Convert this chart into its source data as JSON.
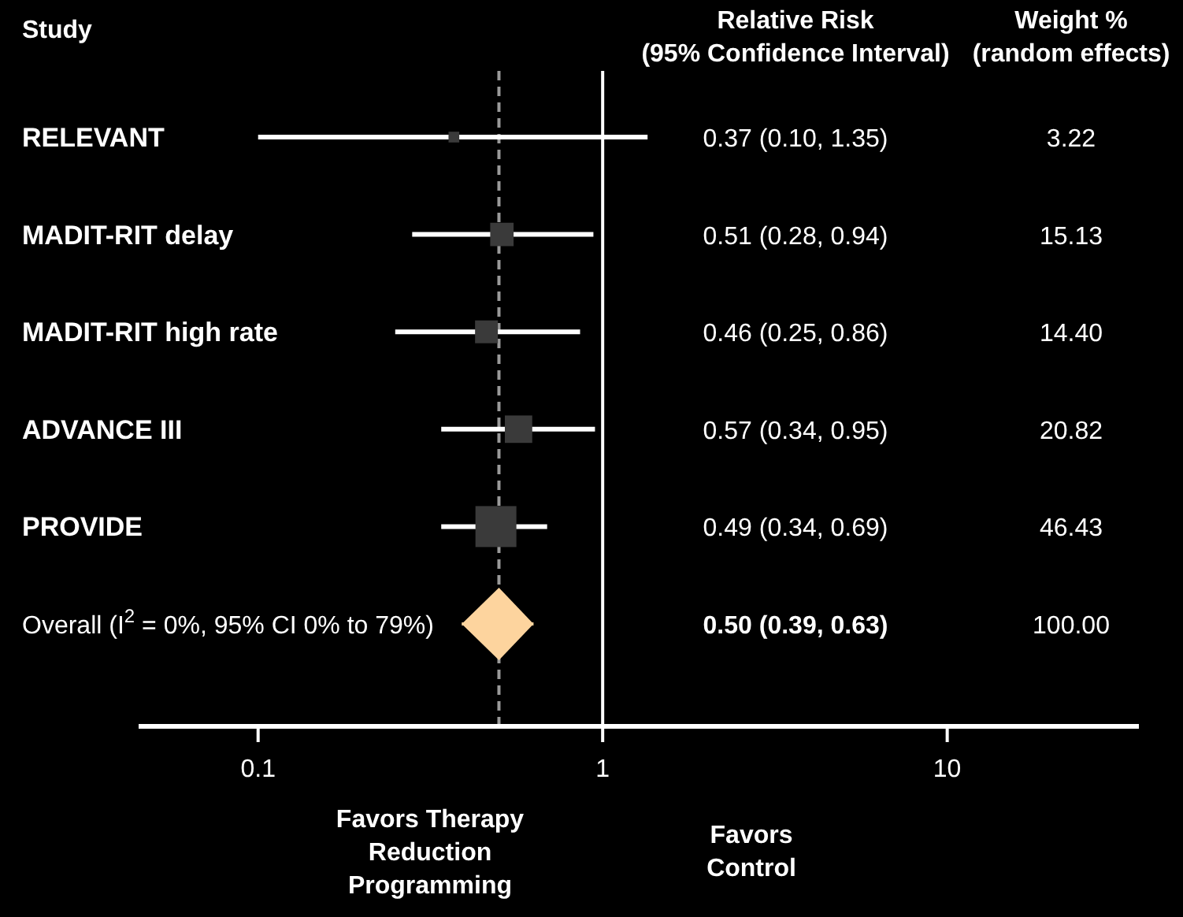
{
  "chart_data": [
    {
      "type": "bubble",
      "orientation": "horizontal",
      "ylabel": "Study",
      "categories": [
        "RELEVANT",
        "MADIT-RIT delay",
        "MADIT-RIT high rate",
        "ADVANCE III",
        "PROVIDE",
        "Overall (I$^{2}$ = 0%, 95% CI 0% to 79%)"
      ],
      "series": [
        {
          "marker": "square",
          "color": "#ffffff",
          "colors": [
            "#3a3a3a",
            "#3a3a3a",
            "#3a3a3a",
            "#3a3a3a",
            "#3a3a3a",
            null
          ],
          "values": [
            0.37,
            0.51,
            0.46,
            0.57,
            0.49,
            null
          ],
          "errors": [
            [
              0.1,
              1.35
            ],
            [
              0.28,
              0.94
            ],
            [
              0.25,
              0.86
            ],
            [
              0.34,
              0.95
            ],
            [
              0.34,
              0.69
            ],
            null
          ],
          "sizes": [
            0.069,
            0.326,
            0.31,
            0.448,
            1,
            null
          ]
        },
        {
          "type": "scatter",
          "marker": "diamond",
          "color": "#fdd49e",
          "values": [
            null,
            null,
            null,
            null,
            null,
            0.5
          ],
          "errors": [
            null,
            null,
            null,
            null,
            null,
            [
              0.39,
              0.63
            ]
          ]
        }
      ],
      "log": "x",
      "xlim": [
        0.045,
        36
      ],
      "xticks": [
        0.1,
        1,
        10
      ],
      "ref_lines": [
        {
          "axis": "x",
          "value": 0.5,
          "color": "#9a9a9a",
          "line_style": "dashed"
        },
        {
          "axis": "x",
          "value": 1,
          "color": "#ffffff",
          "line_style": "solid"
        }
      ],
      "annotations": [
        "Favors Therapy\nReduction\nProgramming",
        "Favors\nControl"
      ]
    },
    {
      "type": "other",
      "annotations": [
        "Relative Risk\n(95% Confidence Interval)",
        "Weight %\n(random effects)",
        "0.37 (0.10, 1.35)",
        "3.22",
        "0.51 (0.28, 0.94)",
        "15.13",
        "0.46 (0.25, 0.86)",
        "14.40",
        "0.57 (0.34, 0.95)",
        "20.82",
        "0.49 (0.34, 0.69)",
        "46.43",
        "0.50 (0.39, 0.63)",
        "100.00"
      ]
    }
  ]
}
